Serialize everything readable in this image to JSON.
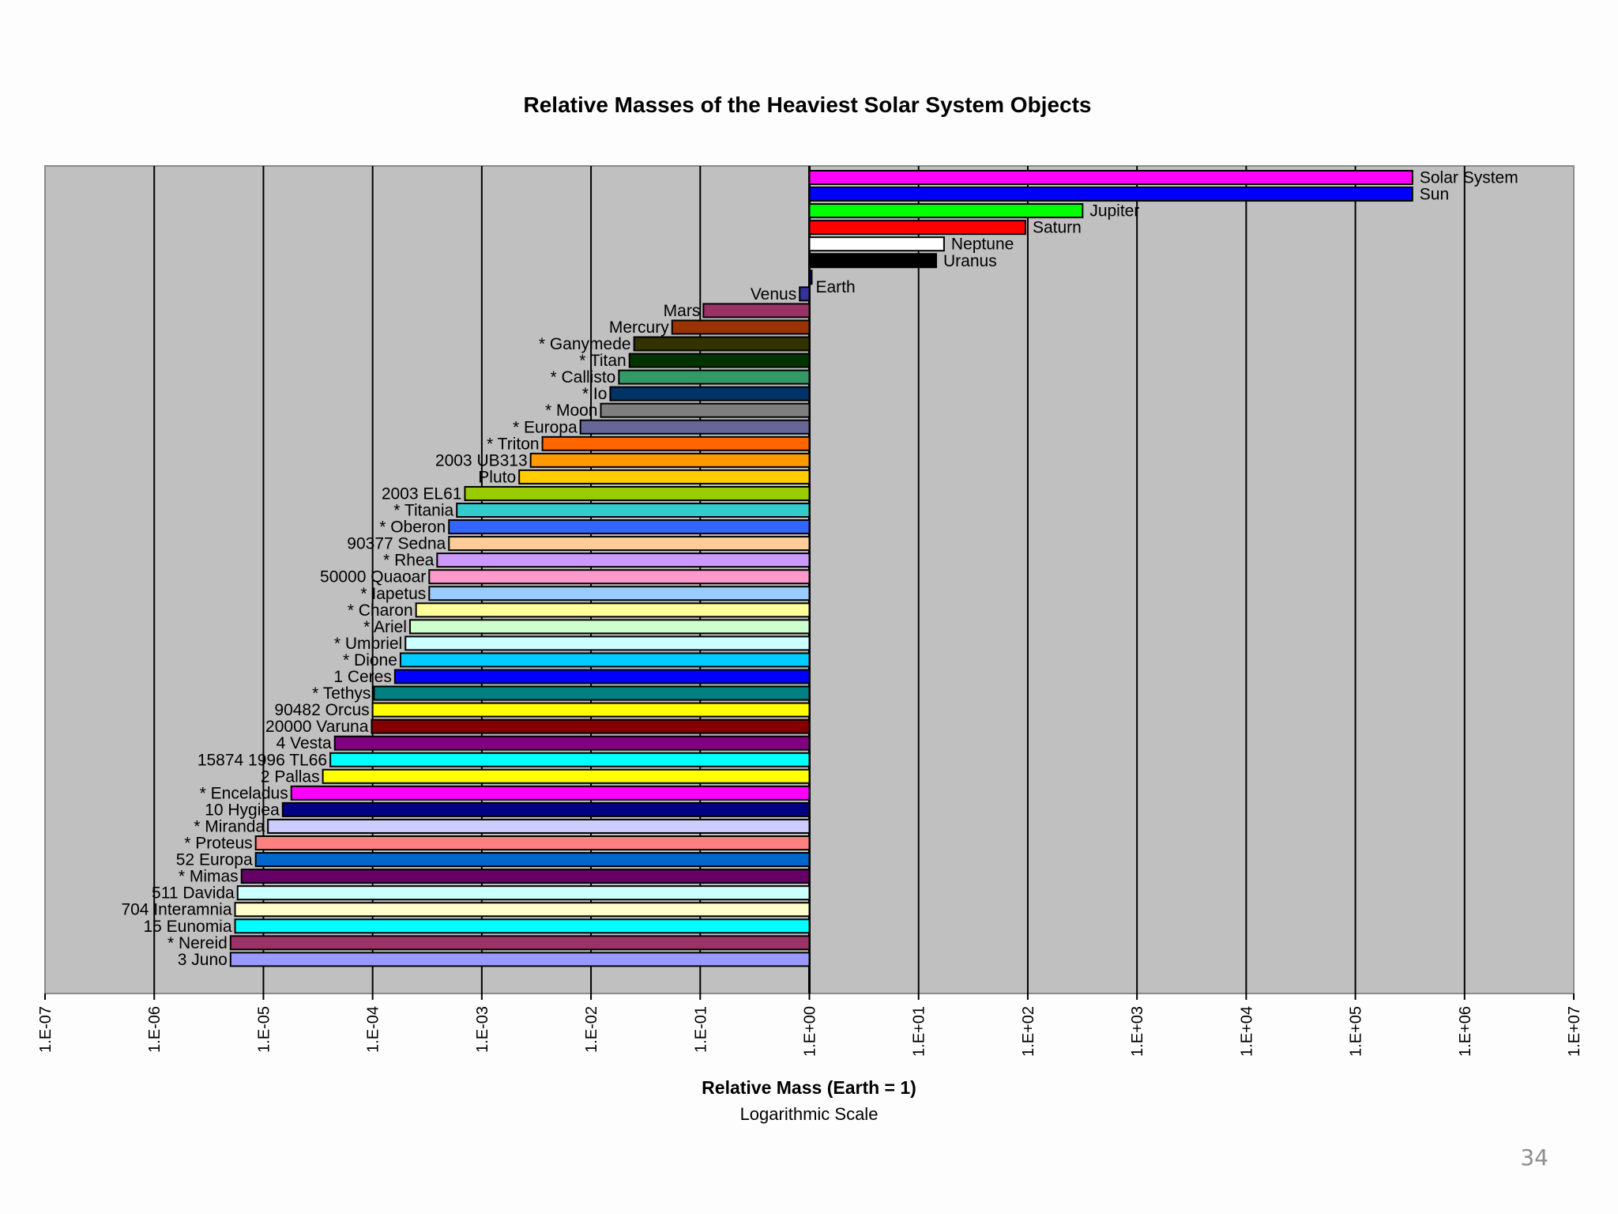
{
  "chart_data": {
    "type": "bar",
    "orientation": "horizontal",
    "title": "Relative Masses of the Heaviest Solar System Objects",
    "xlabel": "Relative Mass (Earth = 1)",
    "xlabel_sub": "Logarithmic Scale",
    "ylabel": "",
    "xscale": "log",
    "xlim": [
      1e-07,
      10000000.0
    ],
    "grid": true,
    "legend": "none",
    "x_tick_labels": [
      "1.E-07",
      "1.E-06",
      "1.E-05",
      "1.E-04",
      "1.E-03",
      "1.E-02",
      "1.E-01",
      "1.E+00",
      "1.E+01",
      "1.E+02",
      "1.E+03",
      "1.E+04",
      "1.E+05",
      "1.E+06",
      "1.E+07"
    ],
    "bars": [
      {
        "label": "Solar System",
        "value": 333400,
        "color": "#ff00ff"
      },
      {
        "label": "Sun",
        "value": 333000,
        "color": "#0000ff"
      },
      {
        "label": "Jupiter",
        "value": 317.8,
        "color": "#00ff00"
      },
      {
        "label": "Saturn",
        "value": 95.2,
        "color": "#ff0000"
      },
      {
        "label": "Neptune",
        "value": 17.1,
        "color": "#ffffff"
      },
      {
        "label": "Uranus",
        "value": 14.5,
        "color": "#000000"
      },
      {
        "label": "Earth",
        "value": 1.0,
        "color": "#000080"
      },
      {
        "label": "Venus",
        "value": 0.815,
        "color": "#333399"
      },
      {
        "label": "Mars",
        "value": 0.107,
        "color": "#993366"
      },
      {
        "label": "Mercury",
        "value": 0.0553,
        "color": "#993300"
      },
      {
        "label": "* Ganymede",
        "value": 0.0248,
        "color": "#333300"
      },
      {
        "label": "* Titan",
        "value": 0.0225,
        "color": "#003300"
      },
      {
        "label": "* Callisto",
        "value": 0.018,
        "color": "#339966"
      },
      {
        "label": "* Io",
        "value": 0.015,
        "color": "#003366"
      },
      {
        "label": "* Moon",
        "value": 0.0123,
        "color": "#808080"
      },
      {
        "label": "* Europa",
        "value": 0.008,
        "color": "#666699"
      },
      {
        "label": "* Triton",
        "value": 0.00359,
        "color": "#ff6600"
      },
      {
        "label": "2003 UB313",
        "value": 0.0028,
        "color": "#ff9900"
      },
      {
        "label": "Pluto",
        "value": 0.0022,
        "color": "#ffcc00"
      },
      {
        "label": "2003 EL61",
        "value": 0.0007,
        "color": "#99cc00"
      },
      {
        "label": "* Titania",
        "value": 0.00059,
        "color": "#33cccc"
      },
      {
        "label": "* Oberon",
        "value": 0.0005,
        "color": "#3366ff"
      },
      {
        "label": "90377 Sedna",
        "value": 0.0005,
        "color": "#ffcc99"
      },
      {
        "label": "* Rhea",
        "value": 0.00039,
        "color": "#cc99ff"
      },
      {
        "label": "50000 Quaoar",
        "value": 0.00033,
        "color": "#ff99cc"
      },
      {
        "label": "* Iapetus",
        "value": 0.00033,
        "color": "#99ccff"
      },
      {
        "label": "* Charon",
        "value": 0.00025,
        "color": "#ffff99"
      },
      {
        "label": "* Ariel",
        "value": 0.00022,
        "color": "#ccffcc"
      },
      {
        "label": "* Umbriel",
        "value": 0.0002,
        "color": "#ccffff"
      },
      {
        "label": "* Dione",
        "value": 0.00018,
        "color": "#00ccff"
      },
      {
        "label": "1 Ceres",
        "value": 0.00016,
        "color": "#0000ff"
      },
      {
        "label": "* Tethys",
        "value": 0.000103,
        "color": "#008080"
      },
      {
        "label": "90482 Orcus",
        "value": 0.0001,
        "color": "#ffff00"
      },
      {
        "label": "20000 Varuna",
        "value": 9.8e-05,
        "color": "#800000"
      },
      {
        "label": "4 Vesta",
        "value": 4.5e-05,
        "color": "#800080"
      },
      {
        "label": "15874 1996 TL66",
        "value": 4.1e-05,
        "color": "#00ffff"
      },
      {
        "label": "2 Pallas",
        "value": 3.5e-05,
        "color": "#ffff00"
      },
      {
        "label": "* Enceladus",
        "value": 1.8e-05,
        "color": "#ff00ff"
      },
      {
        "label": "10 Hygiea",
        "value": 1.5e-05,
        "color": "#000080"
      },
      {
        "label": "* Miranda",
        "value": 1.1e-05,
        "color": "#ccccff"
      },
      {
        "label": "* Proteus",
        "value": 8.5e-06,
        "color": "#ff8080"
      },
      {
        "label": "52 Europa",
        "value": 8.5e-06,
        "color": "#0066cc"
      },
      {
        "label": "* Mimas",
        "value": 6.3e-06,
        "color": "#660066"
      },
      {
        "label": "511 Davida",
        "value": 5.8e-06,
        "color": "#ccffff"
      },
      {
        "label": "704 Interamnia",
        "value": 5.5e-06,
        "color": "#ffffcc"
      },
      {
        "label": "15 Eunomia",
        "value": 5.5e-06,
        "color": "#00ffff"
      },
      {
        "label": "* Nereid",
        "value": 5e-06,
        "color": "#993366"
      },
      {
        "label": "3 Juno",
        "value": 5e-06,
        "color": "#9999ff"
      }
    ]
  },
  "slide": {
    "page_number": "34"
  },
  "colors": {
    "plot_bg": "#c0c0c0",
    "grid": "#000000"
  }
}
